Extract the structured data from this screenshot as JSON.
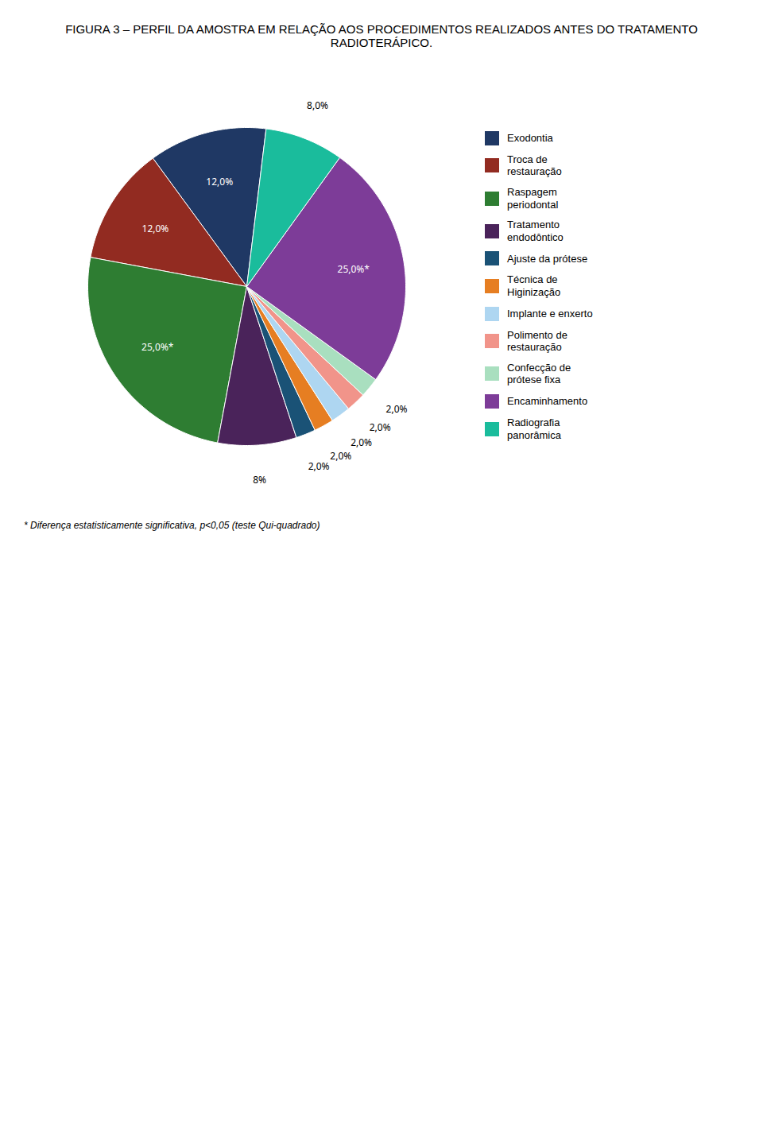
{
  "chart_data": {
    "type": "pie",
    "title": "FIGURA 3 – PERFIL DA AMOSTRA EM RELAÇÃO AOS PROCEDIMENTOS REALIZADOS ANTES DO TRATAMENTO RADIOTERÁPICO.",
    "categories": [
      "Exodontia",
      "Troca de\nrestauração",
      "Raspagem\nperiodontal",
      "Tratamento\nendodôntico",
      "Ajuste da prótese",
      "Técnica de\nHiginização",
      "Implante e enxerto",
      "Polimento de\nrestauração",
      "Confecção de\nprótese fixa",
      "Encaminhamento",
      "Radiografia\npanorâmica"
    ],
    "values": [
      12,
      12,
      25,
      8,
      2,
      2,
      2,
      2,
      2,
      25,
      8
    ],
    "value_labels": [
      "12,0%",
      "12,0%",
      "25,0%*",
      "8%",
      "2,0%",
      "2,0%",
      "2,0%",
      "2,0%",
      "2,0%",
      "25,0%*",
      "8,0%"
    ],
    "colors": [
      "#1F3864",
      "#922B21",
      "#2E7D32",
      "#4A235A",
      "#1A5276",
      "#E67E22",
      "#AED6F1",
      "#F1948A",
      "#A9DFBF",
      "#7D3C98",
      "#1ABC9C"
    ],
    "data_labels": true,
    "legend": "right",
    "annotations": [
      "* Diferença estatisticamente significativa, p<0,05 (teste Qui-quadrado)"
    ]
  }
}
